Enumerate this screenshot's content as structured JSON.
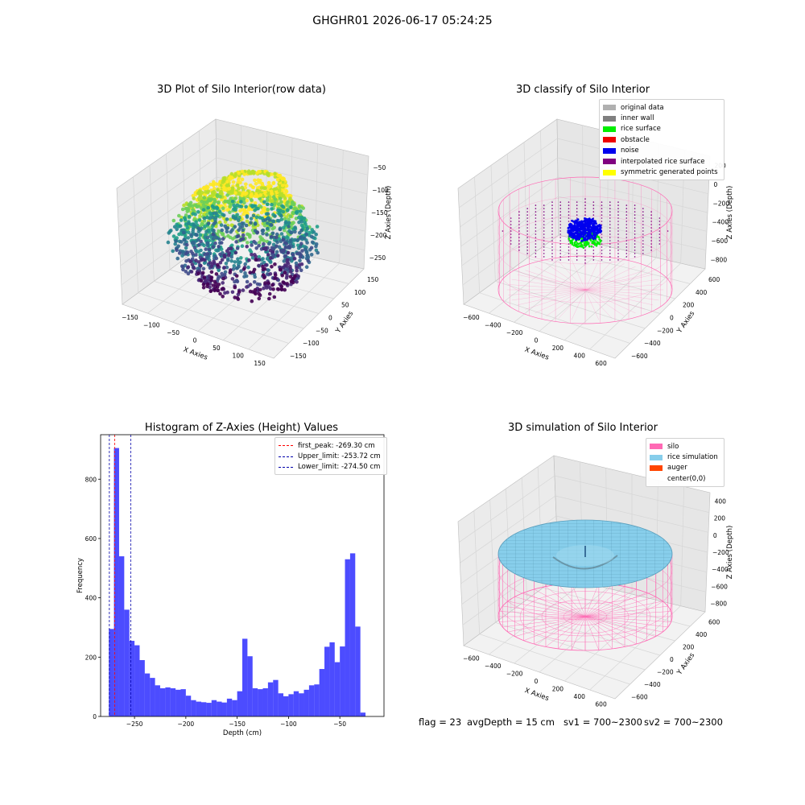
{
  "figure": {
    "suptitle": "GHGHR01 2026-06-17 05:24:25",
    "footer": {
      "flag": "flag = 23",
      "avg_depth": "avgDepth = 15 cm",
      "sv1": "sv1 = 700~2300",
      "sv2": "sv2 = 700~2300"
    }
  },
  "panels": {
    "raw": {
      "title": "3D Plot of Silo Interior(row data)",
      "xlabel": "X Axies",
      "ylabel": "Y Axies",
      "zlabel": "Z Axies (Depth)",
      "xticks": [
        "−150",
        "−100",
        "−50",
        "0",
        "50",
        "100",
        "150"
      ],
      "yticks": [
        "−150",
        "−100",
        "−50",
        "0",
        "50",
        "100",
        "150"
      ],
      "zticks": [
        "−50",
        "−100",
        "−150",
        "−200",
        "−250"
      ]
    },
    "classify": {
      "title": "3D classify of Silo Interior",
      "xlabel": "X Axies",
      "ylabel": "Y Axies",
      "zlabel": "Z Axies (Depth)",
      "xticks": [
        "−600",
        "−400",
        "−200",
        "0",
        "200",
        "400",
        "600"
      ],
      "yticks": [
        "−600",
        "−400",
        "−200",
        "0",
        "200",
        "400",
        "600"
      ],
      "zticks": [
        "200",
        "0",
        "−200",
        "−400",
        "−600",
        "−800"
      ],
      "legend": [
        {
          "label": "original data",
          "color": "#b0b0b0"
        },
        {
          "label": "inner wall",
          "color": "#808080"
        },
        {
          "label": "rice surface",
          "color": "#00ee00"
        },
        {
          "label": "obstacle",
          "color": "#ee0000"
        },
        {
          "label": "noise",
          "color": "#0000ee"
        },
        {
          "label": "interpolated rice surface",
          "color": "#800080"
        },
        {
          "label": "symmetric generated points",
          "color": "#ffff00"
        }
      ]
    },
    "simulation": {
      "title": "3D simulation of Silo Interior",
      "xlabel": "X Axies",
      "ylabel": "Y Axies",
      "zlabel": "Z Axies (Depth)",
      "xticks": [
        "−600",
        "−400",
        "−200",
        "0",
        "200",
        "400",
        "600"
      ],
      "yticks": [
        "−600",
        "−400",
        "−200",
        "0",
        "200",
        "400",
        "600"
      ],
      "zticks": [
        "400",
        "200",
        "0",
        "−200",
        "−400",
        "−600",
        "−800"
      ],
      "legend": [
        {
          "label": "silo",
          "color": "#ff69b4"
        },
        {
          "label": "rice simulation",
          "color": "#87ceeb"
        },
        {
          "label": "auger",
          "color": "#ff4500"
        },
        {
          "label": "center(0,0)",
          "color": ""
        }
      ]
    }
  },
  "chart_data": {
    "type": "bar",
    "title": "Histogram of Z-Axies (Height) Values",
    "xlabel": "Depth (cm)",
    "ylabel": "Frequency",
    "xlim": [
      -283,
      -7
    ],
    "ylim": [
      0,
      950
    ],
    "xticks": [
      -250,
      -200,
      -150,
      -100,
      -50
    ],
    "yticks": [
      0,
      200,
      400,
      600,
      800
    ],
    "bin_start": -275,
    "bin_width": 5,
    "bar_color": "#0000ff",
    "values": [
      295,
      905,
      540,
      360,
      255,
      240,
      190,
      145,
      130,
      105,
      95,
      98,
      95,
      90,
      92,
      70,
      55,
      50,
      48,
      46,
      55,
      50,
      47,
      60,
      55,
      85,
      262,
      203,
      95,
      92,
      95,
      115,
      123,
      78,
      68,
      75,
      85,
      78,
      90,
      105,
      108,
      160,
      235,
      250,
      183,
      236,
      530,
      550,
      303,
      13
    ],
    "lines": [
      {
        "name": "first_peak: -269.30 cm",
        "x": -269.3,
        "color": "#ff0000"
      },
      {
        "name": "Upper_limit: -253.72 cm",
        "x": -253.72,
        "color": "#0000aa"
      },
      {
        "name": "Lower_limit: -274.50 cm",
        "x": -274.5,
        "color": "#0000aa"
      }
    ],
    "legend_position": "top-right"
  }
}
